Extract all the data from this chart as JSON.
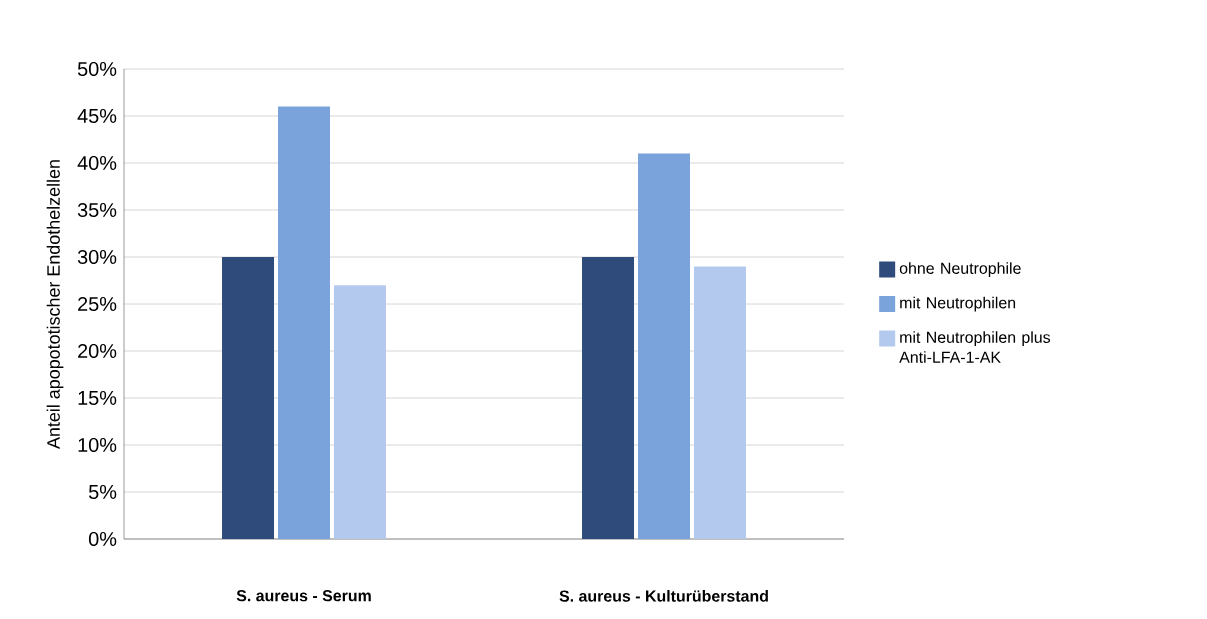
{
  "chart_data": {
    "type": "bar",
    "ylabel": "Anteil apopototischer Endothelzellen",
    "categories": [
      "S. aureus - Serum",
      "S. aureus - Kulturüberstand"
    ],
    "series": [
      {
        "name": "ohne Neutrophile",
        "color": "#2f4b7c",
        "values": [
          30,
          30
        ]
      },
      {
        "name": "mit Neutrophilen",
        "color": "#7aa3dc",
        "values": [
          46,
          41
        ]
      },
      {
        "name": "mit Neutrophilen plus Anti-LFA-1-AK",
        "color": "#b4c9ee",
        "values": [
          27,
          29
        ]
      }
    ],
    "ylim": [
      0,
      50
    ],
    "yticks": [
      {
        "value": 0,
        "label": "0%"
      },
      {
        "value": 5,
        "label": "5%"
      },
      {
        "value": 10,
        "label": "10%"
      },
      {
        "value": 15,
        "label": "15%"
      },
      {
        "value": 20,
        "label": "20%"
      },
      {
        "value": 25,
        "label": "25%"
      },
      {
        "value": 30,
        "label": "30%"
      },
      {
        "value": 35,
        "label": "35%"
      },
      {
        "value": 40,
        "label": "40%"
      },
      {
        "value": 45,
        "label": "45%"
      },
      {
        "value": 50,
        "label": "50%"
      }
    ],
    "grid": "y",
    "legend": "right"
  }
}
